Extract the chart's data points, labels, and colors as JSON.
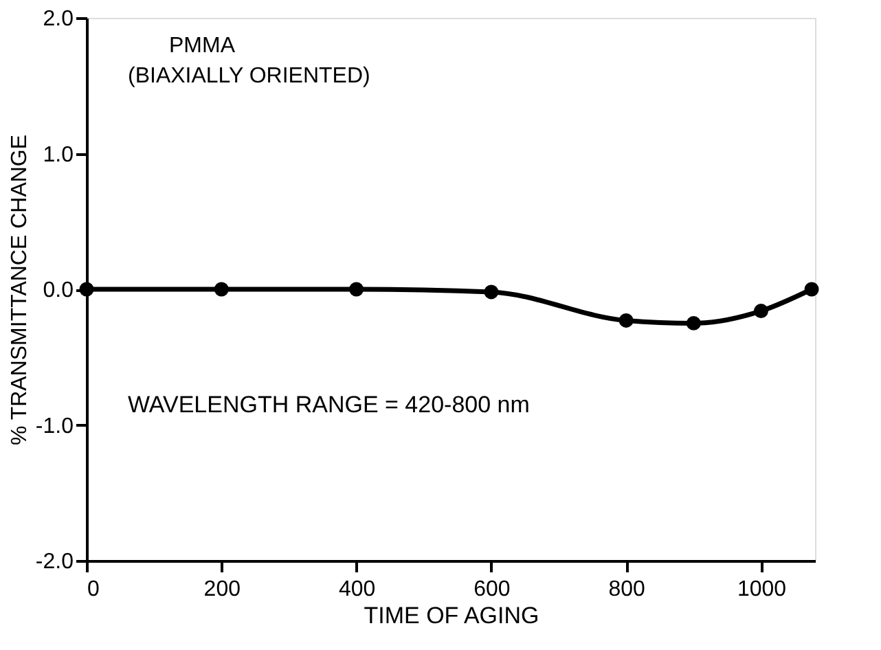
{
  "chart_data": {
    "type": "line",
    "xlabel": "TIME OF AGING",
    "ylabel": "% TRANSMITTANCE CHANGE",
    "x": [
      0,
      200,
      400,
      600,
      800,
      900,
      1000,
      1075
    ],
    "series": [
      {
        "color": "#000000",
        "values": [
          0.0,
          0.0,
          0.0,
          -0.02,
          -0.23,
          -0.25,
          -0.16,
          0.0
        ]
      }
    ],
    "xlim": [
      0,
      1080
    ],
    "xticks": [
      0,
      200,
      400,
      600,
      800,
      1000
    ],
    "ylim": [
      -2,
      2
    ],
    "yticks": [
      {
        "value": -2,
        "label": "-2.0"
      },
      {
        "value": -1,
        "label": "-1.0"
      },
      {
        "value": 0,
        "label": "0.0"
      },
      {
        "value": 1,
        "label": "1.0"
      },
      {
        "value": 2,
        "label": "2.0"
      }
    ],
    "annotations": [
      "PMMA",
      "(BIAXIALLY ORIENTED)",
      "WAVELENGTH RANGE = 420-800 nm"
    ],
    "marker": "circle",
    "line_style": "solid",
    "grid": false
  }
}
